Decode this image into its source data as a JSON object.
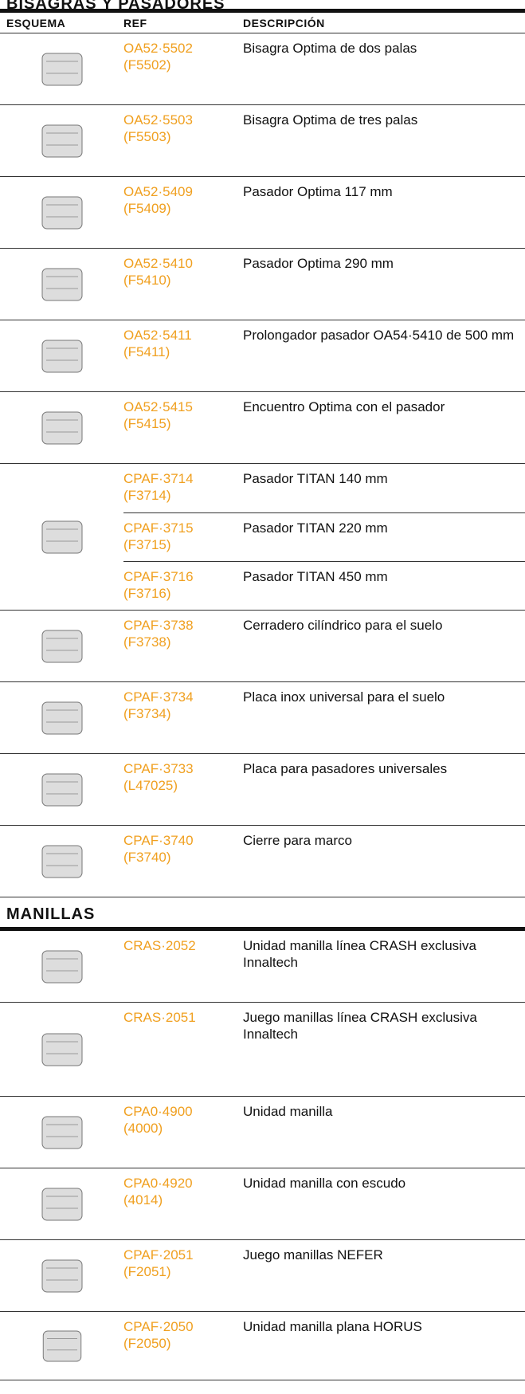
{
  "sections": [
    {
      "title": "BISAGRAS Y PASADORES",
      "header": {
        "scheme": "ESQUEMA",
        "ref": "REF",
        "description": "DESCRIPCIÓN"
      },
      "rows": [
        {
          "ref": "OA52·5502",
          "ref_old": "(F5502)",
          "description": "Bisagra Optima de dos palas"
        },
        {
          "ref": "OA52·5503",
          "ref_old": "(F5503)",
          "description": "Bisagra Optima de tres palas"
        },
        {
          "ref": "OA52·5409",
          "ref_old": "(F5409)",
          "description": "Pasador Optima 117 mm"
        },
        {
          "ref": "OA52·5410",
          "ref_old": "(F5410)",
          "description": "Pasador Optima 290 mm"
        },
        {
          "ref": "OA52·5411",
          "ref_old": "(F5411)",
          "description": "Prolongador pasador OA54·5410 de 500 mm"
        },
        {
          "ref": "OA52·5415",
          "ref_old": "(F5415)",
          "description": "Encuentro Optima con el pasador"
        },
        {
          "items": [
            {
              "ref": "CPAF·3714",
              "ref_old": "(F3714)",
              "description": "Pasador TITAN 140 mm"
            },
            {
              "ref": "CPAF·3715",
              "ref_old": "(F3715)",
              "description": "Pasador TITAN 220 mm"
            },
            {
              "ref": "CPAF·3716",
              "ref_old": "(F3716)",
              "description": "Pasador TITAN 450 mm"
            }
          ]
        },
        {
          "ref": "CPAF·3738",
          "ref_old": "(F3738)",
          "description": "Cerradero cilíndrico para el suelo"
        },
        {
          "ref": "CPAF·3734",
          "ref_old": "(F3734)",
          "description": "Placa inox universal para el suelo"
        },
        {
          "ref": "CPAF·3733",
          "ref_old": "(L47025)",
          "description": "Placa para pasadores universales"
        },
        {
          "ref": "CPAF·3740",
          "ref_old": "(F3740)",
          "description": "Cierre para marco"
        }
      ]
    },
    {
      "title": "MANILLAS",
      "rows": [
        {
          "ref": "CRAS·2052",
          "description": "Unidad manilla línea CRASH exclusiva Innaltech"
        },
        {
          "ref": "CRAS·2051",
          "description": "Juego manillas línea CRASH exclusiva Innaltech"
        },
        {
          "ref": "CPA0·4900",
          "ref_old": "(4000)",
          "description": "Unidad manilla"
        },
        {
          "ref": "CPA0·4920",
          "ref_old": "(4014)",
          "description": "Unidad manilla con escudo"
        },
        {
          "ref": "CPAF·2051",
          "ref_old": "(F2051)",
          "description": "Juego manillas NEFER"
        },
        {
          "ref": "CPAF·2050",
          "ref_old": "(F2050)",
          "description": "Unidad manilla plana HORUS"
        }
      ]
    }
  ]
}
